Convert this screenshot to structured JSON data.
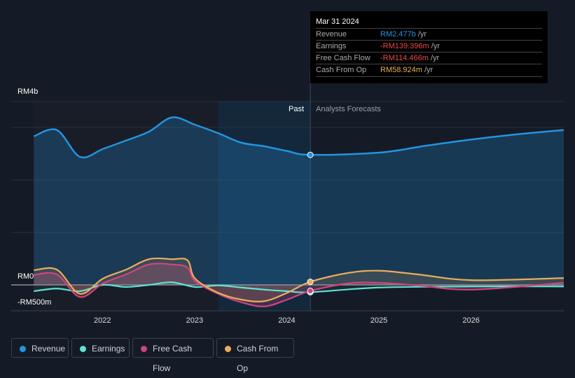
{
  "chart_data": {
    "type": "line",
    "y_unit": "RM billions",
    "y_tick_labels": [
      "RM4b",
      "RM0",
      "-RM500m"
    ],
    "x_tick_labels": [
      "2022",
      "2023",
      "2024",
      "2025",
      "2026"
    ],
    "past_label": "Past",
    "forecast_label": "Analysts Forecasts",
    "forecast_start": "2024-04-01",
    "highlight_start": "2023-04-01",
    "series": [
      {
        "name": "Revenue",
        "color": "#2394df",
        "x": [
          "2021-04",
          "2021-07",
          "2021-10",
          "2022-01",
          "2022-04",
          "2022-07",
          "2022-10",
          "2023-01",
          "2023-04",
          "2023-07",
          "2023-10",
          "2024-01",
          "2024-04",
          "2025-01",
          "2025-07",
          "2026-01",
          "2026-07",
          "2027-01"
        ],
        "values": [
          2.83,
          2.95,
          2.44,
          2.59,
          2.75,
          2.92,
          3.19,
          3.05,
          2.89,
          2.71,
          2.64,
          2.55,
          2.477,
          2.52,
          2.65,
          2.77,
          2.87,
          2.95
        ]
      },
      {
        "name": "Earnings",
        "color": "#5fe3d2",
        "x": [
          "2021-04",
          "2021-07",
          "2021-10",
          "2022-01",
          "2022-04",
          "2022-07",
          "2022-10",
          "2023-01",
          "2023-04",
          "2023-07",
          "2023-10",
          "2024-01",
          "2024-04",
          "2025-01",
          "2026-01",
          "2027-01"
        ],
        "values": [
          -0.12,
          -0.07,
          -0.12,
          0,
          -0.04,
          0,
          0.05,
          -0.04,
          -0.01,
          -0.05,
          -0.09,
          -0.12,
          -0.139,
          -0.05,
          -0.03,
          -0.03
        ]
      },
      {
        "name": "Free Cash Flow",
        "color": "#d0457f",
        "x": [
          "2021-04",
          "2021-07",
          "2021-10",
          "2022-01",
          "2022-04",
          "2022-07",
          "2022-10",
          "2022-12",
          "2023-01",
          "2023-04",
          "2023-07",
          "2023-10",
          "2024-01",
          "2024-04",
          "2024-09",
          "2025-01",
          "2025-06",
          "2026-01",
          "2027-01"
        ],
        "values": [
          0.19,
          0.2,
          -0.23,
          0.03,
          0.2,
          0.39,
          0.39,
          0.33,
          0.07,
          -0.17,
          -0.33,
          -0.41,
          -0.28,
          -0.114,
          0.03,
          0.04,
          -0.01,
          -0.09,
          0.04
        ]
      },
      {
        "name": "Cash From Op",
        "color": "#e9ad5c",
        "x": [
          "2021-04",
          "2021-07",
          "2021-10",
          "2022-01",
          "2022-04",
          "2022-07",
          "2022-10",
          "2022-12",
          "2023-01",
          "2023-04",
          "2023-07",
          "2023-10",
          "2024-01",
          "2024-04",
          "2024-09",
          "2025-01",
          "2025-06",
          "2026-01",
          "2027-01"
        ],
        "values": [
          0.28,
          0.29,
          -0.17,
          0.12,
          0.29,
          0.49,
          0.49,
          0.47,
          0.12,
          -0.15,
          -0.28,
          -0.31,
          -0.15,
          0.059,
          0.23,
          0.27,
          0.2,
          0.09,
          0.13
        ]
      }
    ]
  },
  "tooltip": {
    "date": "Mar 31 2024",
    "rows": [
      {
        "label": "Revenue",
        "value": "RM2.477b",
        "unit": " /yr",
        "color": "#2394df"
      },
      {
        "label": "Earnings",
        "value": "-RM139.396m",
        "unit": " /yr",
        "color": "#f0474a"
      },
      {
        "label": "Free Cash Flow",
        "value": "-RM114.466m",
        "unit": " /yr",
        "color": "#f0474a"
      },
      {
        "label": "Cash From Op",
        "value": "RM58.924m",
        "unit": " /yr",
        "color": "#e9ad5c"
      }
    ]
  }
}
